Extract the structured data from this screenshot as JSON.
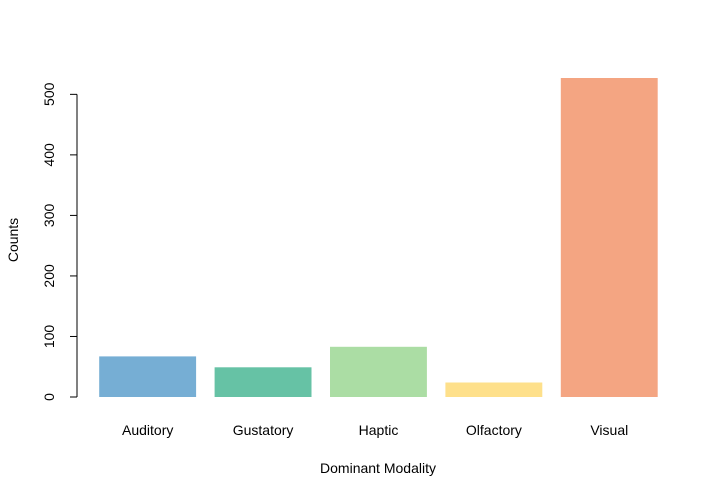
{
  "chart_data": {
    "type": "bar",
    "title": "",
    "xlabel": "Dominant Modality",
    "ylabel": "Counts",
    "categories": [
      "Auditory",
      "Gustatory",
      "Haptic",
      "Olfactory",
      "Visual"
    ],
    "values": [
      67,
      49,
      83,
      24,
      527
    ],
    "colors": [
      "#76AED4",
      "#66C2A5",
      "#ABDDA4",
      "#FEE08B",
      "#F4A582"
    ],
    "ylim": [
      0,
      527
    ],
    "yticks": [
      0,
      100,
      200,
      300,
      400,
      500
    ],
    "grid": false,
    "legend": "none"
  }
}
